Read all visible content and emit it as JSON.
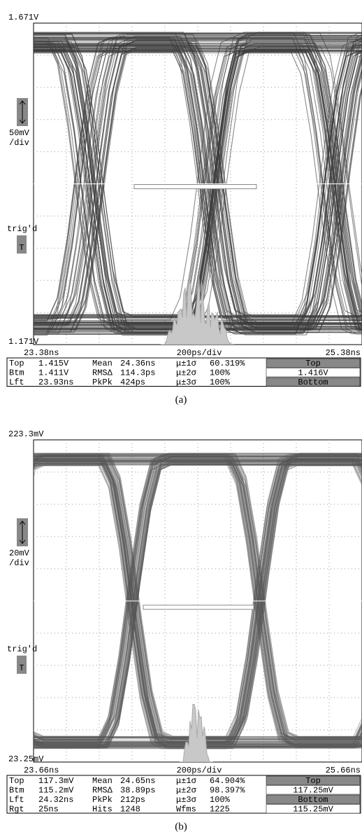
{
  "panels": [
    {
      "top_label": "1.671V",
      "scale": "50mV",
      "scale_unit": "/div",
      "trigger": "trig'd",
      "trigger_icon": "T",
      "bottom_label": "1.171V",
      "x_start": "23.38ns",
      "timebase": "200ps/div",
      "x_end": "25.38ns",
      "measurements": [
        [
          "Top",
          "1.415V",
          "Mean",
          "24.36ns",
          "μ±1σ",
          "60.319%"
        ],
        [
          "Btm",
          "1.411V",
          "RMSΔ",
          "114.3ps",
          "μ±2σ",
          "100%"
        ],
        [
          "Lft",
          "23.93ns",
          "PkPk",
          "424ps",
          "μ±3σ",
          "100%"
        ]
      ],
      "side": [
        "Top",
        "1.416V",
        "Bottom"
      ],
      "caption": "(a)"
    },
    {
      "top_label": "223.3mV",
      "scale": "20mV",
      "scale_unit": "/div",
      "trigger": "trig'd",
      "trigger_icon": "T",
      "bottom_label": "23.25mV",
      "x_start": "23.66ns",
      "timebase": "200ps/div",
      "x_end": "25.66ns",
      "measurements": [
        [
          "Top",
          "117.3mV",
          "Mean",
          "24.65ns",
          "μ±1σ",
          "64.904%"
        ],
        [
          "Btm",
          "115.2mV",
          "RMSΔ",
          "38.89ps",
          "μ±2σ",
          "98.397%"
        ],
        [
          "Lft",
          "24.32ns",
          "PkPk",
          "212ps",
          "μ±3σ",
          "100%"
        ],
        [
          "Rgt",
          "25ns",
          "Hits",
          "1248",
          "Wfms",
          "1225"
        ]
      ],
      "side": [
        "Top",
        "117.25mV",
        "Bottom",
        "115.25mV"
      ],
      "caption": "(b)"
    }
  ]
}
